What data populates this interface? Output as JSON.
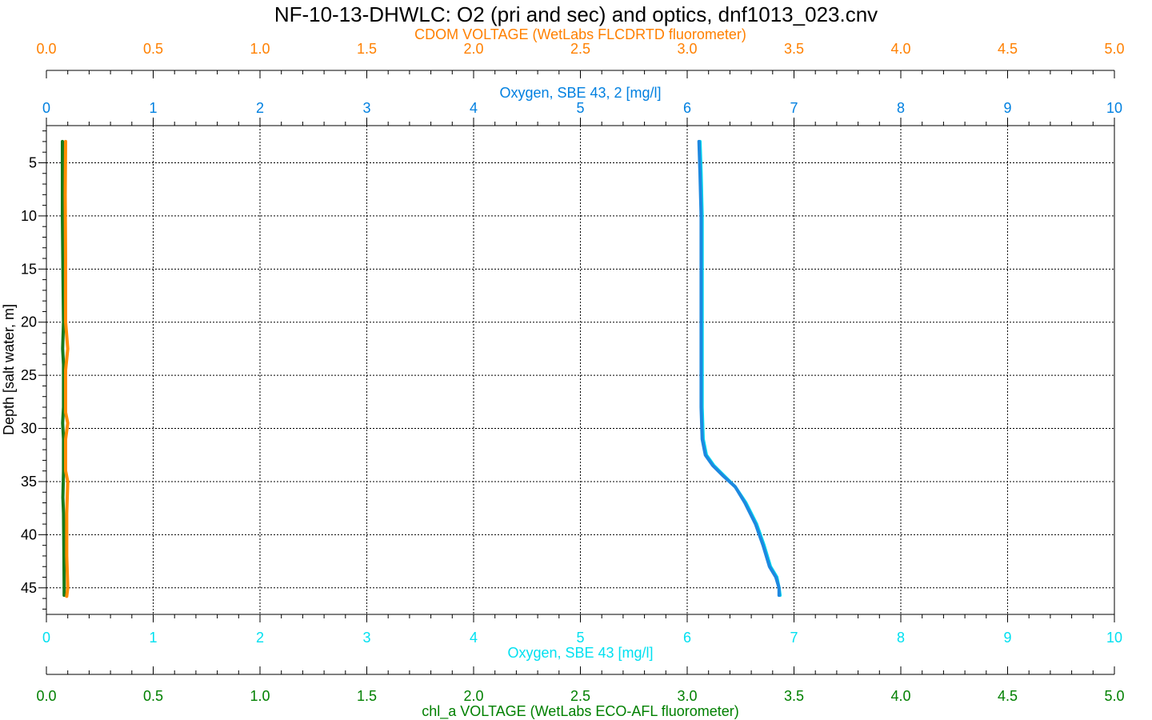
{
  "chart_data": {
    "type": "line",
    "title": "NF-10-13-DHWLC: O2 (pri and sec) and optics, dnf1013_023.cnv",
    "grid": true,
    "y_axis": {
      "label": "Depth [salt water, m]",
      "range": [
        47.5,
        1.5
      ],
      "ticks": [
        5,
        10,
        15,
        20,
        25,
        30,
        35,
        40,
        45
      ],
      "tick_labels": [
        "5",
        "10",
        "15",
        "20",
        "25",
        "30",
        "35",
        "40",
        "45"
      ]
    },
    "x_axes": [
      {
        "id": "cdom",
        "position": "top-outer",
        "label": "CDOM VOLTAGE (WetLabs FLCDRTD fluorometer)",
        "color": "#FF8000",
        "range": [
          0.0,
          5.0
        ],
        "ticks": [
          0.0,
          0.5,
          1.0,
          1.5,
          2.0,
          2.5,
          3.0,
          3.5,
          4.0,
          4.5,
          5.0
        ],
        "tick_labels": [
          "0.0",
          "0.5",
          "1.0",
          "1.5",
          "2.0",
          "2.5",
          "3.0",
          "3.5",
          "4.0",
          "4.5",
          "5.0"
        ]
      },
      {
        "id": "oxy2",
        "position": "top-inner",
        "label": "Oxygen, SBE 43, 2 [mg/l]",
        "color": "#0080E0",
        "range": [
          0,
          10
        ],
        "ticks": [
          0,
          1,
          2,
          3,
          4,
          5,
          6,
          7,
          8,
          9,
          10
        ],
        "tick_labels": [
          "0",
          "1",
          "2",
          "3",
          "4",
          "5",
          "6",
          "7",
          "8",
          "9",
          "10"
        ]
      },
      {
        "id": "oxy1",
        "position": "bottom-inner",
        "label": "Oxygen, SBE 43 [mg/l]",
        "color": "#00E0F0",
        "range": [
          0,
          10
        ],
        "ticks": [
          0,
          1,
          2,
          3,
          4,
          5,
          6,
          7,
          8,
          9,
          10
        ],
        "tick_labels": [
          "0",
          "1",
          "2",
          "3",
          "4",
          "5",
          "6",
          "7",
          "8",
          "9",
          "10"
        ]
      },
      {
        "id": "chl",
        "position": "bottom-outer",
        "label": "chl_a VOLTAGE (WetLabs ECO-AFL fluorometer)",
        "color": "#008000",
        "range": [
          0.0,
          5.0
        ],
        "ticks": [
          0.0,
          0.5,
          1.0,
          1.5,
          2.0,
          2.5,
          3.0,
          3.5,
          4.0,
          4.5,
          5.0
        ],
        "tick_labels": [
          "0.0",
          "0.5",
          "1.0",
          "1.5",
          "2.0",
          "2.5",
          "3.0",
          "3.5",
          "4.0",
          "4.5",
          "5.0"
        ]
      }
    ],
    "series": [
      {
        "axis": "chl",
        "color": "#1A7A1A",
        "points": [
          [
            0.075,
            3.0
          ],
          [
            0.075,
            10.0
          ],
          [
            0.078,
            16.0
          ],
          [
            0.08,
            20.0
          ],
          [
            0.076,
            22.5
          ],
          [
            0.08,
            24.0
          ],
          [
            0.08,
            28.0
          ],
          [
            0.076,
            29.5
          ],
          [
            0.08,
            31.0
          ],
          [
            0.08,
            34.0
          ],
          [
            0.077,
            36.5
          ],
          [
            0.08,
            38.0
          ],
          [
            0.082,
            42.0
          ],
          [
            0.083,
            45.0
          ],
          [
            0.083,
            45.7
          ]
        ]
      },
      {
        "axis": "cdom",
        "color": "#FF8C00",
        "points": [
          [
            0.09,
            3.0
          ],
          [
            0.088,
            8.0
          ],
          [
            0.09,
            14.0
          ],
          [
            0.09,
            20.0
          ],
          [
            0.1,
            22.5
          ],
          [
            0.09,
            24.5
          ],
          [
            0.09,
            28.5
          ],
          [
            0.1,
            29.5
          ],
          [
            0.09,
            31.0
          ],
          [
            0.09,
            34.0
          ],
          [
            0.1,
            35.0
          ],
          [
            0.095,
            38.0
          ],
          [
            0.095,
            42.0
          ],
          [
            0.1,
            45.0
          ],
          [
            0.095,
            45.8
          ]
        ]
      },
      {
        "axis": "oxy1",
        "color": "#00D8F0",
        "points": [
          [
            6.12,
            3.0
          ],
          [
            6.13,
            6.0
          ],
          [
            6.14,
            10.0
          ],
          [
            6.14,
            15.0
          ],
          [
            6.14,
            20.0
          ],
          [
            6.14,
            25.0
          ],
          [
            6.14,
            28.0
          ],
          [
            6.15,
            31.0
          ],
          [
            6.18,
            32.5
          ],
          [
            6.25,
            33.5
          ],
          [
            6.35,
            34.5
          ],
          [
            6.45,
            35.5
          ],
          [
            6.55,
            37.0
          ],
          [
            6.65,
            39.0
          ],
          [
            6.72,
            41.0
          ],
          [
            6.78,
            43.0
          ],
          [
            6.84,
            44.0
          ],
          [
            6.86,
            45.0
          ],
          [
            6.87,
            45.7
          ]
        ]
      },
      {
        "axis": "oxy2",
        "color": "#1E88E0",
        "points": [
          [
            6.11,
            3.0
          ],
          [
            6.12,
            6.0
          ],
          [
            6.13,
            10.0
          ],
          [
            6.13,
            15.0
          ],
          [
            6.13,
            20.0
          ],
          [
            6.13,
            25.0
          ],
          [
            6.13,
            28.0
          ],
          [
            6.14,
            31.0
          ],
          [
            6.17,
            32.5
          ],
          [
            6.24,
            33.5
          ],
          [
            6.34,
            34.5
          ],
          [
            6.45,
            35.5
          ],
          [
            6.54,
            37.0
          ],
          [
            6.64,
            39.0
          ],
          [
            6.71,
            41.0
          ],
          [
            6.77,
            43.0
          ],
          [
            6.83,
            44.0
          ],
          [
            6.86,
            45.0
          ],
          [
            6.86,
            45.7
          ]
        ]
      }
    ]
  }
}
